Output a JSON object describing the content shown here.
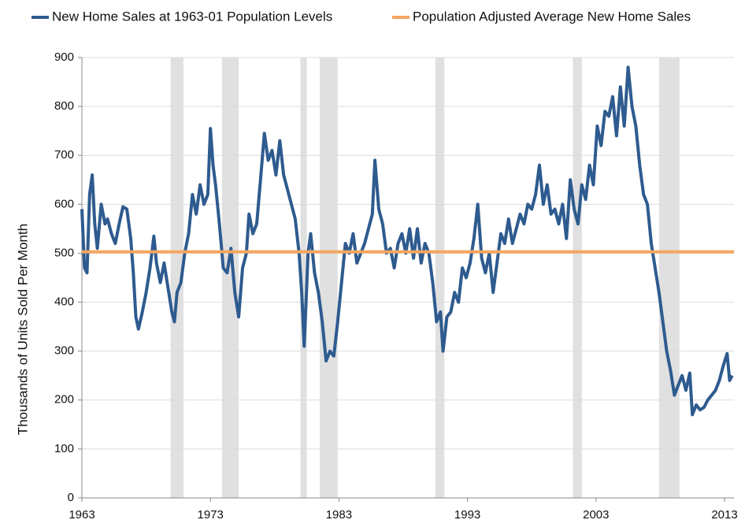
{
  "chart_data": {
    "type": "line",
    "ylabel": "Thousands of Units Sold Per Month",
    "xlim": [
      1963,
      2013.75
    ],
    "xticks": [
      1963,
      1973,
      1983,
      1993,
      2003,
      2013
    ],
    "ylim": [
      0,
      900
    ],
    "yticks": [
      0,
      100,
      200,
      300,
      400,
      500,
      600,
      700,
      800,
      900
    ],
    "grid": true,
    "legend": "top",
    "recessions": [
      [
        1969.9,
        1970.9
      ],
      [
        1973.9,
        1975.2
      ],
      [
        1980.0,
        1980.5
      ],
      [
        1981.5,
        1982.9
      ],
      [
        1990.5,
        1991.2
      ],
      [
        2001.2,
        2001.9
      ],
      [
        2007.9,
        2009.5
      ]
    ],
    "recession_color": "#e0e0e0",
    "series": [
      {
        "name": "New Home Sales at 1963-01 Population Levels",
        "color": "#2e5b8f",
        "x": [
          1963.0,
          1963.2,
          1963.4,
          1963.6,
          1963.8,
          1964.0,
          1964.2,
          1964.5,
          1964.8,
          1965.0,
          1965.3,
          1965.6,
          1965.9,
          1966.2,
          1966.5,
          1966.8,
          1967.0,
          1967.2,
          1967.4,
          1967.7,
          1968.0,
          1968.3,
          1968.6,
          1968.8,
          1969.1,
          1969.4,
          1969.7,
          1970.0,
          1970.2,
          1970.4,
          1970.7,
          1971.0,
          1971.3,
          1971.6,
          1971.9,
          1972.2,
          1972.5,
          1972.8,
          1973.0,
          1973.2,
          1973.4,
          1973.7,
          1974.0,
          1974.3,
          1974.6,
          1974.9,
          1975.2,
          1975.5,
          1975.8,
          1976.0,
          1976.3,
          1976.6,
          1976.9,
          1977.2,
          1977.5,
          1977.8,
          1978.1,
          1978.4,
          1978.7,
          1979.0,
          1979.3,
          1979.6,
          1979.9,
          1980.1,
          1980.3,
          1980.6,
          1980.8,
          1981.1,
          1981.4,
          1981.7,
          1982.0,
          1982.3,
          1982.6,
          1982.9,
          1983.2,
          1983.5,
          1983.8,
          1984.1,
          1984.4,
          1984.7,
          1985.0,
          1985.3,
          1985.6,
          1985.8,
          1986.1,
          1986.4,
          1986.7,
          1987.0,
          1987.3,
          1987.6,
          1987.9,
          1988.2,
          1988.5,
          1988.8,
          1989.1,
          1989.4,
          1989.7,
          1990.0,
          1990.3,
          1990.6,
          1990.9,
          1991.1,
          1991.4,
          1991.7,
          1992.0,
          1992.3,
          1992.6,
          1992.9,
          1993.2,
          1993.5,
          1993.8,
          1994.1,
          1994.4,
          1994.7,
          1995.0,
          1995.3,
          1995.6,
          1995.9,
          1996.2,
          1996.5,
          1996.8,
          1997.1,
          1997.4,
          1997.7,
          1998.0,
          1998.3,
          1998.6,
          1998.9,
          1999.2,
          1999.5,
          1999.8,
          2000.1,
          2000.4,
          2000.7,
          2001.0,
          2001.3,
          2001.6,
          2001.9,
          2002.2,
          2002.5,
          2002.8,
          2003.1,
          2003.4,
          2003.7,
          2004.0,
          2004.3,
          2004.6,
          2004.9,
          2005.2,
          2005.5,
          2005.8,
          2006.1,
          2006.4,
          2006.7,
          2007.0,
          2007.3,
          2007.6,
          2007.9,
          2008.2,
          2008.5,
          2008.8,
          2009.1,
          2009.4,
          2009.7,
          2010.0,
          2010.3,
          2010.5,
          2010.8,
          2011.1,
          2011.4,
          2011.7,
          2012.0,
          2012.3,
          2012.6,
          2012.9,
          2013.2,
          2013.4,
          2013.6
        ],
        "values": [
          590,
          470,
          460,
          620,
          660,
          560,
          510,
          600,
          560,
          570,
          540,
          520,
          560,
          595,
          590,
          530,
          460,
          370,
          345,
          380,
          420,
          470,
          535,
          480,
          440,
          480,
          430,
          380,
          360,
          420,
          440,
          500,
          540,
          620,
          580,
          640,
          600,
          620,
          755,
          680,
          640,
          560,
          470,
          460,
          510,
          420,
          370,
          470,
          500,
          580,
          540,
          560,
          650,
          745,
          690,
          710,
          660,
          730,
          660,
          630,
          600,
          570,
          500,
          420,
          310,
          500,
          540,
          460,
          420,
          360,
          280,
          300,
          290,
          360,
          440,
          520,
          500,
          540,
          480,
          500,
          520,
          550,
          580,
          690,
          590,
          560,
          500,
          510,
          470,
          520,
          540,
          500,
          550,
          490,
          550,
          480,
          520,
          500,
          440,
          360,
          380,
          300,
          370,
          380,
          420,
          400,
          470,
          450,
          480,
          530,
          600,
          490,
          460,
          500,
          420,
          480,
          540,
          520,
          570,
          520,
          550,
          580,
          560,
          600,
          590,
          620,
          680,
          600,
          640,
          580,
          590,
          560,
          600,
          530,
          650,
          590,
          560,
          640,
          610,
          680,
          640,
          760,
          720,
          790,
          780,
          820,
          740,
          840,
          760,
          880,
          800,
          760,
          680,
          620,
          600,
          520,
          470,
          420,
          360,
          300,
          260,
          210,
          230,
          250,
          220,
          255,
          170,
          190,
          180,
          185,
          200,
          210,
          220,
          240,
          270,
          295,
          240,
          250
        ]
      },
      {
        "name": "Population Adjusted Average New Home Sales",
        "color": "#f5a661",
        "x": [
          1963,
          2013.75
        ],
        "values": [
          503,
          503
        ]
      }
    ]
  }
}
